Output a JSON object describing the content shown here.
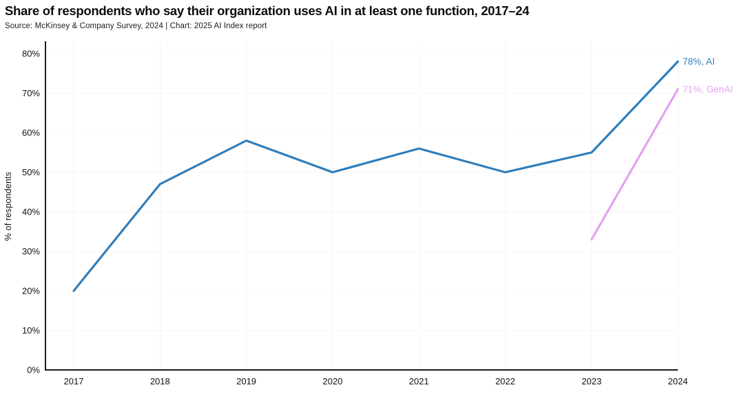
{
  "header": {
    "title": "Share of respondents who say their organization uses AI in at least one function, 2017–24",
    "source": "Source: McKinsey & Company Survey, 2024 | Chart: 2025 AI Index report"
  },
  "chart_data": {
    "type": "line",
    "title": "Share of respondents who say their organization uses AI in at least one function, 2017–24",
    "source": "Source: McKinsey & Company Survey, 2024 | Chart: 2025 AI Index report",
    "xlabel": "",
    "ylabel": "% of respondents",
    "x": [
      2017,
      2018,
      2019,
      2020,
      2021,
      2022,
      2023,
      2024
    ],
    "ylim": [
      0,
      80
    ],
    "ytick_step": 10,
    "ytick_suffix": "%",
    "grid": true,
    "legend_position": "end-of-line-labels",
    "axis_color": "#1c1c1c",
    "grid_color": "#f7f4f4",
    "series": [
      {
        "name": "AI",
        "color": "#2e7ebc",
        "values": [
          20,
          47,
          58,
          50,
          56,
          50,
          55,
          78
        ],
        "end_label": "78%, AI"
      },
      {
        "name": "GenAI",
        "color": "#e2a3ee",
        "values": [
          null,
          null,
          null,
          null,
          null,
          null,
          33,
          71
        ],
        "end_label": "71%, GenAI"
      }
    ]
  }
}
